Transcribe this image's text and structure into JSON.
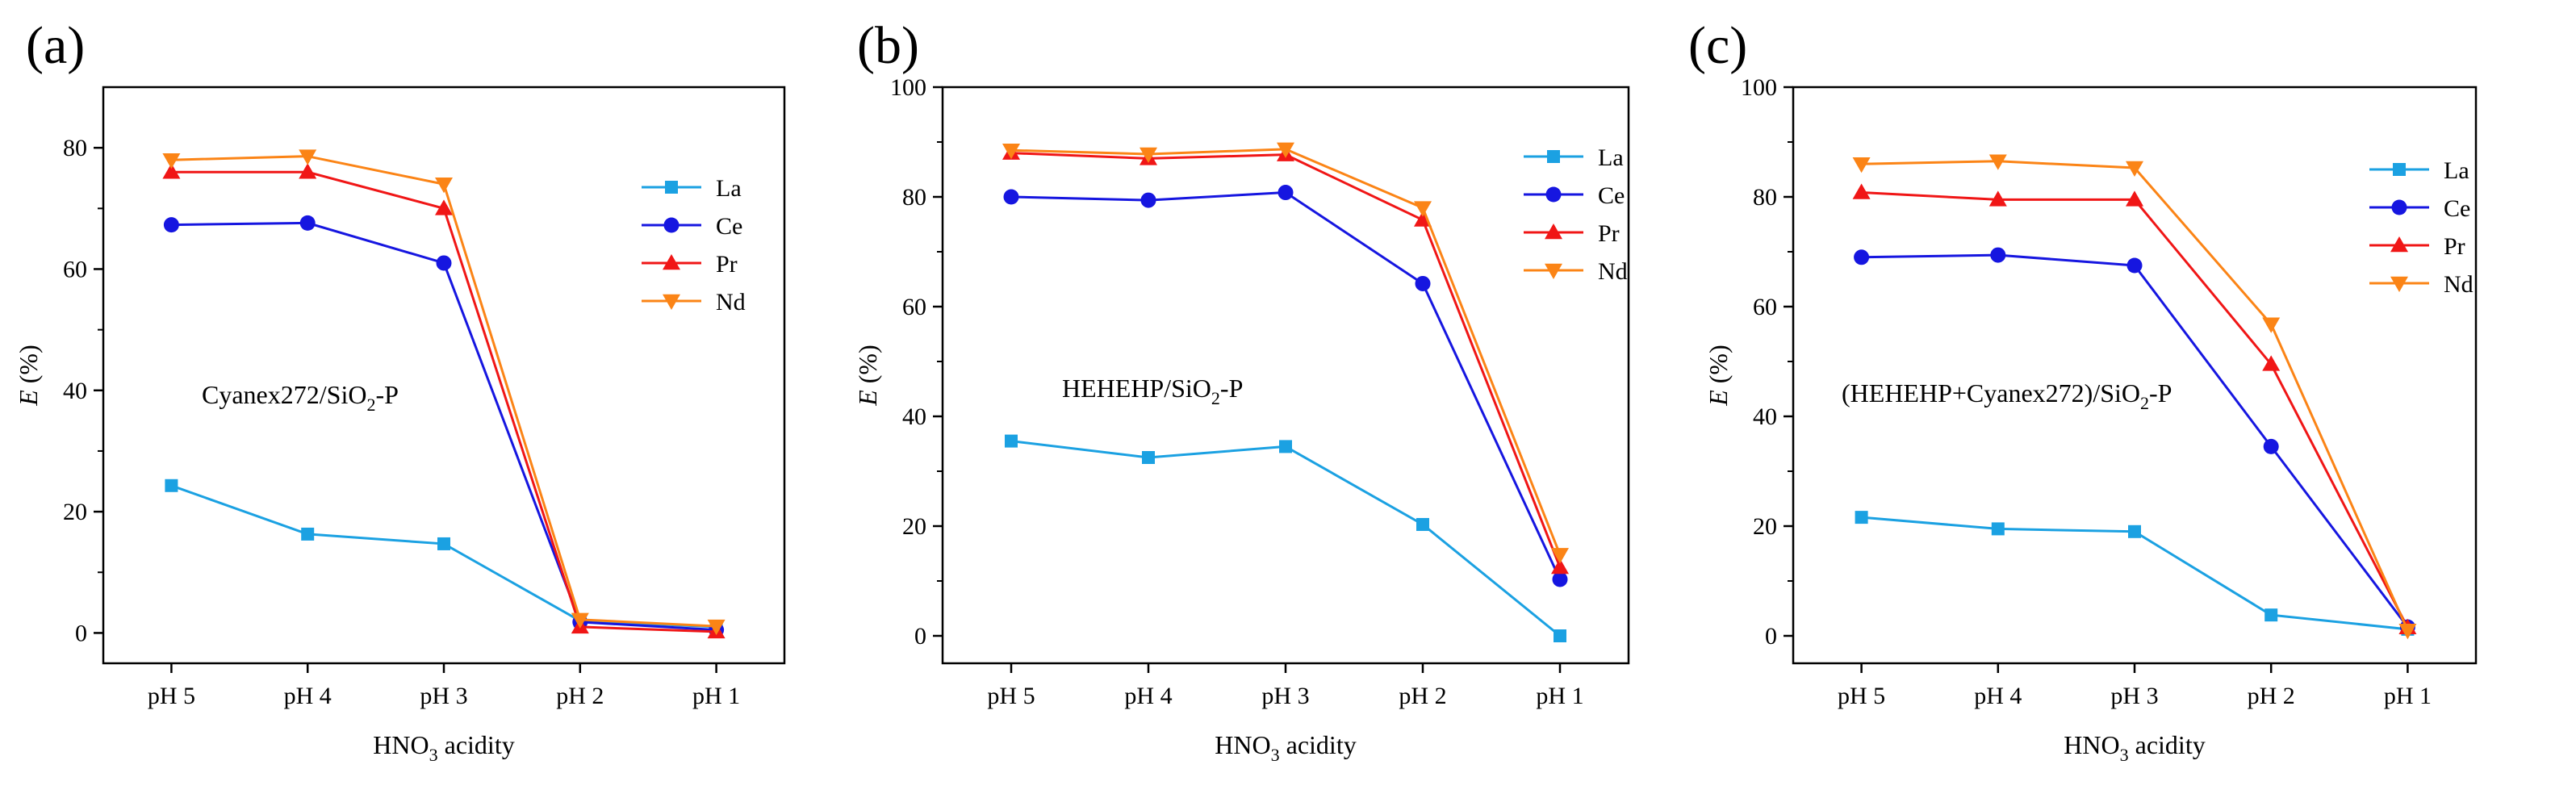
{
  "chart_data": [
    {
      "type": "line",
      "panel_label": "(a)",
      "annotation": "Cyanex272/SiO",
      "annotation_sub": "2",
      "annotation_tail": "-P",
      "xlabel": "HNO",
      "xlabel_sub": "3",
      "xlabel_tail": " acidity",
      "ylabel": "E",
      "ylabel_tail": " (%)",
      "ylim": [
        -5,
        90
      ],
      "yticks": [
        0,
        20,
        40,
        60,
        80
      ],
      "categories": [
        "pH 5",
        "pH 4",
        "pH 3",
        "pH 2",
        "pH 1"
      ],
      "series": [
        {
          "name": "La",
          "values": [
            24.3,
            16.3,
            14.7,
            2.0,
            1.0
          ]
        },
        {
          "name": "Ce",
          "values": [
            67.3,
            67.6,
            61.0,
            1.8,
            0.5
          ]
        },
        {
          "name": "Pr",
          "values": [
            76.0,
            76.0,
            70.0,
            1.0,
            0.2
          ]
        },
        {
          "name": "Nd",
          "values": [
            78.0,
            78.6,
            74.0,
            2.2,
            1.1
          ]
        }
      ]
    },
    {
      "type": "line",
      "panel_label": "(b)",
      "annotation": "HEHEHP/SiO",
      "annotation_sub": "2",
      "annotation_tail": "-P",
      "xlabel": "HNO",
      "xlabel_sub": "3",
      "xlabel_tail": " acidity",
      "ylabel": "E",
      "ylabel_tail": " (%)",
      "ylim": [
        -5,
        100
      ],
      "yticks": [
        0,
        20,
        40,
        60,
        80,
        100
      ],
      "categories": [
        "pH 5",
        "pH 4",
        "pH 3",
        "pH 2",
        "pH 1"
      ],
      "series": [
        {
          "name": "La",
          "values": [
            35.5,
            32.5,
            34.5,
            20.3,
            0.0
          ]
        },
        {
          "name": "Ce",
          "values": [
            80.0,
            79.4,
            80.8,
            64.2,
            10.3
          ]
        },
        {
          "name": "Pr",
          "values": [
            88.0,
            87.0,
            87.7,
            75.8,
            12.5
          ]
        },
        {
          "name": "Nd",
          "values": [
            88.5,
            87.8,
            88.7,
            78.0,
            14.8
          ]
        }
      ]
    },
    {
      "type": "line",
      "panel_label": "(c)",
      "annotation": "(HEHEHP+Cyanex272)/SiO",
      "annotation_sub": "2",
      "annotation_tail": "-P",
      "xlabel": "HNO",
      "xlabel_sub": "3",
      "xlabel_tail": " acidity",
      "ylabel": "E",
      "ylabel_tail": " (%)",
      "ylim": [
        -5,
        100
      ],
      "yticks": [
        0,
        20,
        40,
        60,
        80,
        100
      ],
      "categories": [
        "pH 5",
        "pH 4",
        "pH 3",
        "pH 2",
        "pH 1"
      ],
      "series": [
        {
          "name": "La",
          "values": [
            21.6,
            19.5,
            19.0,
            3.8,
            1.2
          ]
        },
        {
          "name": "Ce",
          "values": [
            69.0,
            69.4,
            67.5,
            34.5,
            1.6
          ]
        },
        {
          "name": "Pr",
          "values": [
            80.8,
            79.5,
            79.5,
            49.5,
            1.5
          ]
        },
        {
          "name": "Nd",
          "values": [
            86.0,
            86.5,
            85.3,
            56.8,
            1.0
          ]
        }
      ]
    }
  ],
  "styles": {
    "La": {
      "color": "#1BA1E2",
      "marker": "square"
    },
    "Ce": {
      "color": "#1616E0",
      "marker": "circle"
    },
    "Pr": {
      "color": "#F01616",
      "marker": "triangle-up"
    },
    "Nd": {
      "color": "#FB8416",
      "marker": "triangle-down"
    }
  }
}
